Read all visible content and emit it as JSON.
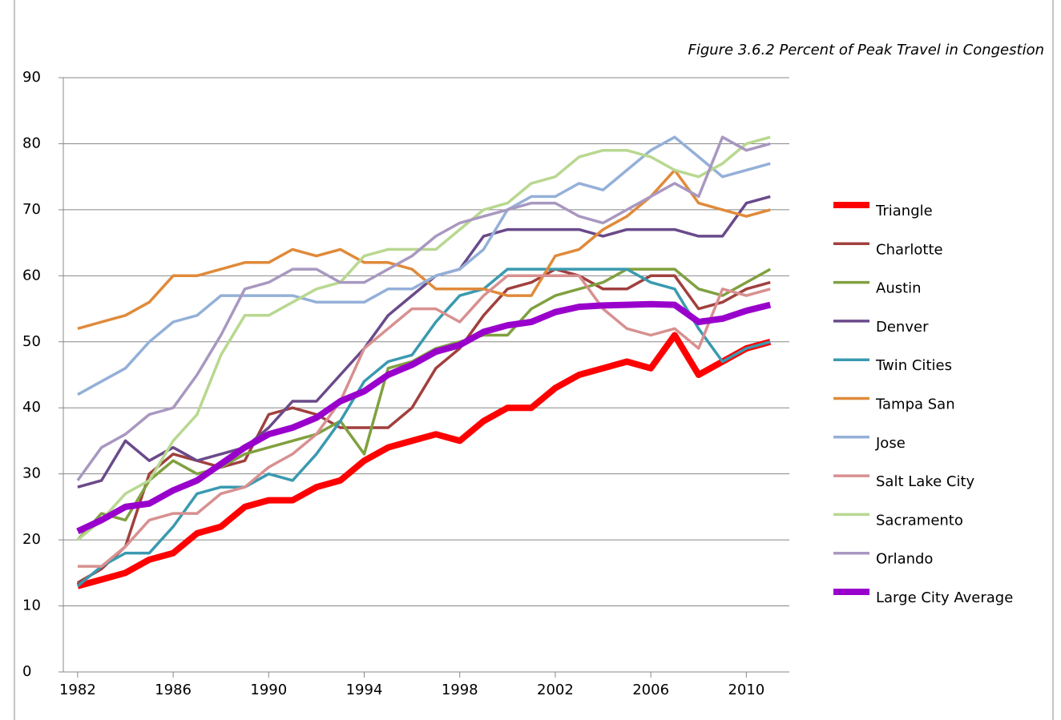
{
  "chart_data": {
    "type": "line",
    "title": "Figure 3.6.2 Percent of Peak Travel in Congestion",
    "x": [
      1982,
      1983,
      1984,
      1985,
      1986,
      1987,
      1988,
      1989,
      1990,
      1991,
      1992,
      1993,
      1994,
      1995,
      1996,
      1997,
      1998,
      1999,
      2000,
      2001,
      2002,
      2003,
      2004,
      2005,
      2006,
      2007,
      2008,
      2009,
      2010,
      2011
    ],
    "xlim": [
      1981.4,
      2011.8
    ],
    "xticks": [
      1982,
      1986,
      1990,
      1994,
      1998,
      2002,
      2006,
      2010
    ],
    "ylim": [
      0,
      90
    ],
    "yticks": [
      0,
      10,
      20,
      30,
      40,
      50,
      60,
      70,
      80,
      90
    ],
    "grid": true,
    "legend": "right",
    "series": [
      {
        "name": "Triangle",
        "color": "#ff0000",
        "width": 8,
        "values": [
          13,
          14,
          15,
          17,
          18,
          21,
          22,
          25,
          26,
          26,
          28,
          29,
          32,
          34,
          35,
          36,
          35,
          38,
          40,
          40,
          43,
          45,
          46,
          47,
          46,
          51,
          45,
          47,
          49,
          50
        ]
      },
      {
        "name": "Charlotte",
        "color": "#a0403e",
        "width": 3.5,
        "values": [
          13.5,
          15.6,
          19,
          30,
          33,
          32,
          31,
          32,
          39,
          40,
          39,
          37,
          37,
          37,
          40,
          46,
          49,
          54,
          58,
          59,
          61,
          60,
          58,
          58,
          60,
          60,
          55,
          56,
          58,
          59
        ]
      },
      {
        "name": "Austin",
        "color": "#80a040",
        "width": 3.5,
        "values": [
          20,
          24,
          23,
          29,
          32,
          30,
          31,
          33,
          34,
          35,
          36,
          38,
          33,
          46,
          47,
          49,
          50,
          51,
          51,
          55,
          57,
          58,
          59,
          61,
          61,
          61,
          58,
          57,
          59,
          61
        ]
      },
      {
        "name": "Denver",
        "color": "#6a4a8a",
        "width": 3.5,
        "values": [
          28,
          29,
          35,
          32,
          34,
          32,
          33,
          34,
          37,
          41,
          41,
          45,
          49,
          54,
          57,
          60,
          61,
          66,
          67,
          67,
          67,
          67,
          66,
          67,
          67,
          67,
          66,
          66,
          71,
          72
        ]
      },
      {
        "name": "Twin Cities",
        "color": "#3a9ab0",
        "width": 3.5,
        "values": [
          13,
          16,
          18,
          18,
          22,
          27,
          28,
          28,
          30,
          29,
          33,
          38,
          44,
          47,
          48,
          53,
          57,
          58,
          61,
          61,
          61,
          61,
          61,
          61,
          59,
          58,
          52,
          47,
          49,
          50
        ]
      },
      {
        "name": "Tampa San",
        "color": "#e08a3a",
        "width": 3.5,
        "values": [
          52,
          53,
          54,
          56,
          60,
          60,
          61,
          62,
          62,
          64,
          63,
          64,
          62,
          62,
          61,
          58,
          58,
          58,
          57,
          57,
          63,
          64,
          67,
          69,
          72,
          76,
          71,
          70,
          69,
          70
        ]
      },
      {
        "name": "Jose",
        "color": "#94b0d8",
        "width": 3.5,
        "values": [
          42,
          44,
          46,
          50,
          53,
          54,
          57,
          57,
          57,
          57,
          56,
          56,
          56,
          58,
          58,
          60,
          61,
          64,
          70,
          72,
          72,
          74,
          73,
          76,
          79,
          81,
          78,
          75,
          76,
          77
        ]
      },
      {
        "name": "Salt Lake City",
        "color": "#d89090",
        "width": 3.5,
        "values": [
          16,
          16,
          19,
          23,
          24,
          24,
          27,
          28,
          31,
          33,
          36,
          41,
          49,
          52,
          55,
          55,
          53,
          57,
          60,
          60,
          60,
          60,
          55,
          52,
          51,
          52,
          49,
          58,
          57,
          58
        ]
      },
      {
        "name": "Sacramento",
        "color": "#b8d890",
        "width": 3.5,
        "values": [
          20,
          23,
          27,
          29,
          35,
          39,
          48,
          54,
          54,
          56,
          58,
          59,
          63,
          64,
          64,
          64,
          67,
          70,
          71,
          74,
          75,
          78,
          79,
          79,
          78,
          76,
          75,
          77,
          80,
          81
        ]
      },
      {
        "name": "Orlando",
        "color": "#a898c0",
        "width": 3.5,
        "values": [
          29,
          34,
          36,
          39,
          40,
          45,
          51,
          58,
          59,
          61,
          61,
          59,
          59,
          61,
          63,
          66,
          68,
          69,
          70,
          71,
          71,
          69,
          68,
          70,
          72,
          74,
          72,
          81,
          79,
          80
        ]
      },
      {
        "name": "Large City Average",
        "color": "#9900cc",
        "width": 8,
        "values": [
          21.3,
          23,
          25,
          25.5,
          27.5,
          29,
          31.5,
          34,
          36,
          37,
          38.5,
          41,
          42.5,
          45,
          46.5,
          48.5,
          49.5,
          51.5,
          52.5,
          53,
          54.5,
          55.3,
          55.5,
          55.6,
          55.7,
          55.6,
          53,
          53.5,
          54.7,
          55.6
        ]
      }
    ]
  }
}
